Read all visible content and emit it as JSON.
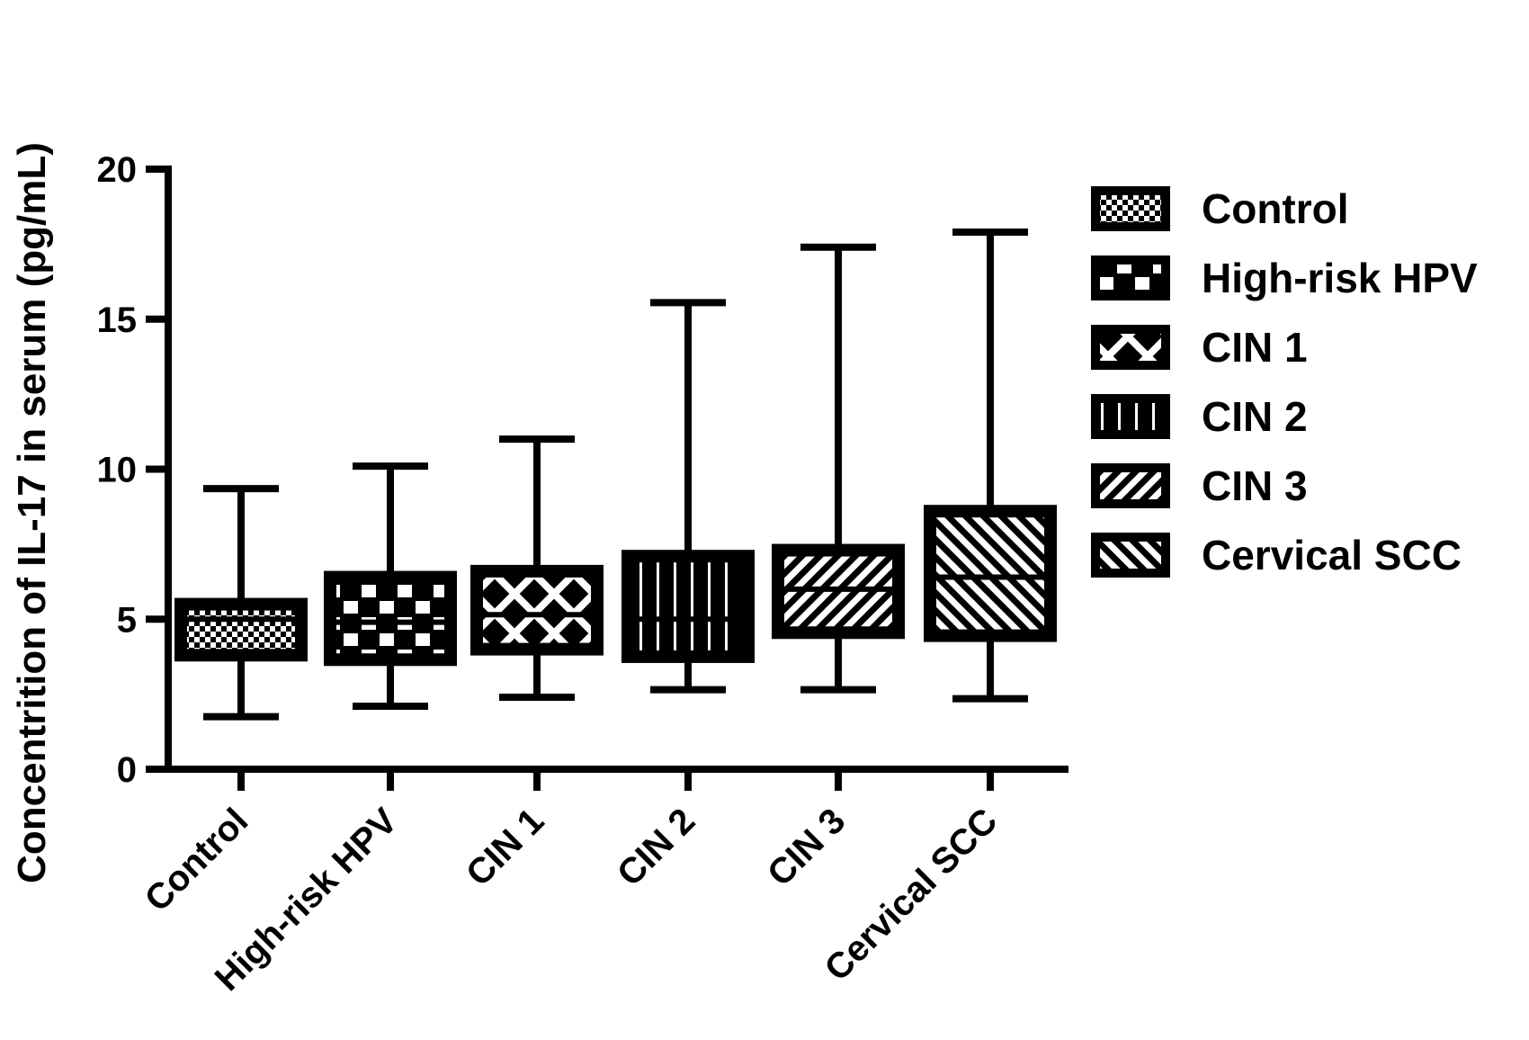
{
  "chart_data": {
    "type": "box",
    "title": "",
    "xlabel": "",
    "ylabel": "Concentrition of IL-17 in serum (pg/mL)",
    "ylim": [
      0,
      20
    ],
    "yticks": [
      0,
      5,
      10,
      15,
      20
    ],
    "categories": [
      "Control",
      "High-risk HPV",
      "CIN 1",
      "CIN 2",
      "CIN 3",
      "Cervical SCC"
    ],
    "series": [
      {
        "name": "Control",
        "pattern": "checker-fine",
        "min": 1.75,
        "q1": 3.8,
        "median": 5.0,
        "q3": 5.5,
        "max": 9.35
      },
      {
        "name": "High-risk HPV",
        "pattern": "checker-large",
        "min": 2.1,
        "q1": 3.65,
        "median": 4.9,
        "q3": 6.4,
        "max": 10.1
      },
      {
        "name": "CIN 1",
        "pattern": "diamonds",
        "min": 2.4,
        "q1": 4.0,
        "median": 5.15,
        "q3": 6.6,
        "max": 11.0
      },
      {
        "name": "CIN 2",
        "pattern": "vertical-lines",
        "min": 2.65,
        "q1": 3.75,
        "median": 5.0,
        "q3": 7.1,
        "max": 15.55
      },
      {
        "name": "CIN 3",
        "pattern": "diagonal-up",
        "min": 2.65,
        "q1": 4.55,
        "median": 6.0,
        "q3": 7.3,
        "max": 17.4
      },
      {
        "name": "Cervical SCC",
        "pattern": "diagonal-down",
        "min": 2.35,
        "q1": 4.45,
        "median": 6.4,
        "q3": 8.6,
        "max": 17.9
      }
    ],
    "legend": {
      "placement": "right",
      "entries": [
        "Control",
        "High-risk HPV",
        "CIN 1",
        "CIN 2",
        "CIN 3",
        "Cervical SCC"
      ]
    },
    "grid": false,
    "colors": {
      "ink": "#000000",
      "paper": "#ffffff"
    }
  }
}
